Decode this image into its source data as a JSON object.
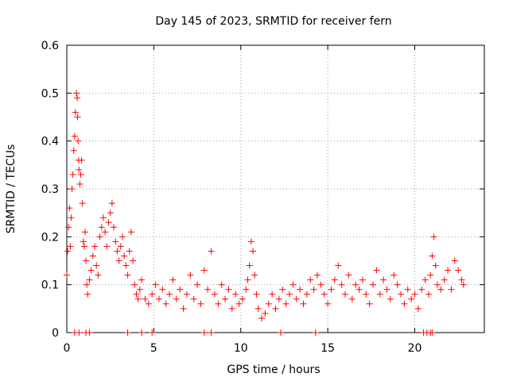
{
  "chart_data": {
    "type": "scatter",
    "title": "Day 145 of 2023, SRMTID for receiver fern",
    "xlabel": "GPS time / hours",
    "ylabel": "SRMTID / TECUs",
    "xlim": [
      0,
      24
    ],
    "ylim": [
      0,
      0.6
    ],
    "xticks": [
      0,
      5,
      10,
      15,
      20
    ],
    "xtick_labels": [
      "0",
      "5",
      "10",
      "15",
      "20"
    ],
    "yticks": [
      0,
      0.1,
      0.2,
      0.3,
      0.4,
      0.5,
      0.6
    ],
    "ytick_labels": [
      "0",
      "0.1",
      "0.2",
      "0.3",
      "0.4",
      "0.5",
      "0.6"
    ],
    "grid": true,
    "marker": "+",
    "series": [
      {
        "name": "SRMTID",
        "color": "#ff0000",
        "x": [
          0.0,
          0.05,
          0.1,
          0.15,
          0.2,
          0.25,
          0.3,
          0.35,
          0.4,
          0.45,
          0.5,
          0.55,
          0.6,
          0.62,
          0.65,
          0.68,
          0.7,
          0.75,
          0.8,
          0.85,
          0.9,
          0.95,
          1.0,
          1.05,
          1.1,
          1.15,
          1.2,
          1.3,
          1.4,
          1.5,
          1.6,
          1.7,
          1.8,
          1.9,
          2.0,
          2.1,
          2.2,
          2.3,
          2.4,
          2.5,
          2.6,
          2.7,
          2.8,
          2.9,
          3.0,
          3.1,
          3.2,
          3.3,
          3.4,
          3.5,
          3.6,
          3.7,
          3.8,
          3.9,
          4.0,
          4.1,
          4.2,
          4.3,
          4.5,
          4.7,
          4.9,
          5.1,
          5.3,
          5.5,
          5.7,
          5.9,
          6.1,
          6.3,
          6.5,
          6.7,
          6.9,
          7.1,
          7.3,
          7.5,
          7.7,
          7.9,
          8.1,
          8.3,
          8.5,
          8.7,
          8.9,
          9.1,
          9.3,
          9.5,
          9.7,
          9.9,
          10.1,
          10.3,
          10.4,
          10.5,
          10.6,
          10.7,
          10.8,
          10.9,
          11.0,
          11.2,
          11.4,
          11.6,
          11.8,
          12.0,
          12.2,
          12.4,
          12.6,
          12.8,
          13.0,
          13.2,
          13.4,
          13.6,
          13.8,
          14.0,
          14.2,
          14.4,
          14.6,
          14.8,
          15.0,
          15.2,
          15.4,
          15.6,
          15.8,
          16.0,
          16.2,
          16.4,
          16.6,
          16.8,
          17.0,
          17.2,
          17.4,
          17.6,
          17.8,
          18.0,
          18.2,
          18.4,
          18.6,
          18.8,
          19.0,
          19.2,
          19.4,
          19.6,
          19.8,
          20.0,
          20.2,
          20.4,
          20.6,
          20.8,
          20.9,
          21.0,
          21.1,
          21.2,
          21.3,
          21.5,
          21.7,
          21.9,
          22.1,
          22.3,
          22.5,
          22.7,
          22.8
        ],
        "y": [
          0.12,
          0.17,
          0.22,
          0.26,
          0.18,
          0.24,
          0.3,
          0.33,
          0.38,
          0.41,
          0.46,
          0.5,
          0.49,
          0.45,
          0.4,
          0.36,
          0.34,
          0.31,
          0.33,
          0.36,
          0.27,
          0.19,
          0.18,
          0.21,
          0.15,
          0.1,
          0.08,
          0.11,
          0.13,
          0.16,
          0.18,
          0.14,
          0.12,
          0.2,
          0.22,
          0.24,
          0.21,
          0.18,
          0.23,
          0.25,
          0.27,
          0.22,
          0.19,
          0.17,
          0.15,
          0.18,
          0.2,
          0.16,
          0.14,
          0.12,
          0.17,
          0.21,
          0.15,
          0.1,
          0.08,
          0.07,
          0.09,
          0.11,
          0.07,
          0.06,
          0.08,
          0.1,
          0.07,
          0.09,
          0.06,
          0.08,
          0.11,
          0.07,
          0.09,
          0.05,
          0.08,
          0.12,
          0.07,
          0.1,
          0.06,
          0.13,
          0.09,
          0.17,
          0.08,
          0.06,
          0.1,
          0.07,
          0.09,
          0.05,
          0.08,
          0.06,
          0.07,
          0.09,
          0.11,
          0.14,
          0.19,
          0.17,
          0.12,
          0.08,
          0.05,
          0.03,
          0.04,
          0.06,
          0.08,
          0.05,
          0.07,
          0.09,
          0.06,
          0.08,
          0.1,
          0.07,
          0.09,
          0.06,
          0.08,
          0.11,
          0.09,
          0.12,
          0.1,
          0.08,
          0.06,
          0.09,
          0.11,
          0.14,
          0.1,
          0.08,
          0.12,
          0.07,
          0.1,
          0.09,
          0.11,
          0.08,
          0.06,
          0.1,
          0.13,
          0.08,
          0.11,
          0.09,
          0.07,
          0.12,
          0.1,
          0.08,
          0.06,
          0.09,
          0.07,
          0.08,
          0.05,
          0.09,
          0.11,
          0.08,
          0.12,
          0.16,
          0.2,
          0.14,
          0.1,
          0.09,
          0.11,
          0.13,
          0.09,
          0.15,
          0.13,
          0.11,
          0.1
        ]
      }
    ],
    "zero_markers_x": [
      0.45,
      0.7,
      1.1,
      1.3,
      3.5,
      4.3,
      4.9,
      7.9,
      8.3,
      12.3,
      14.3,
      20.5,
      20.7,
      20.9,
      21.0
    ]
  }
}
